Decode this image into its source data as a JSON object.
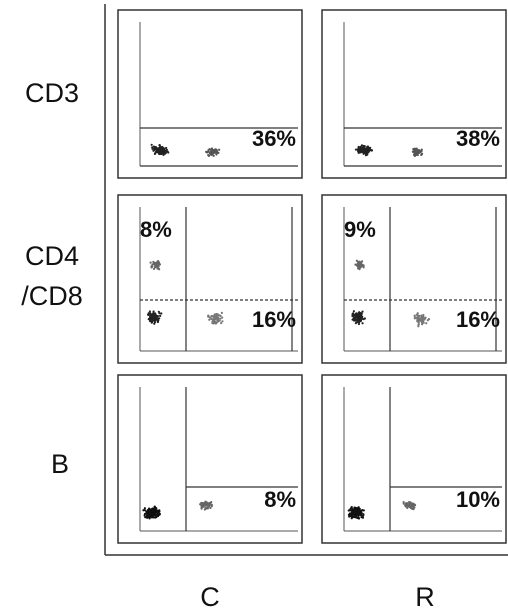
{
  "row_labels": [
    [
      "CD3"
    ],
    [
      "CD4",
      "/CD8"
    ],
    [
      "B"
    ]
  ],
  "column_labels": [
    "C",
    "R"
  ],
  "panels": [
    [
      {
        "labels": [
          "36%"
        ]
      },
      {
        "labels": [
          "38%"
        ]
      }
    ],
    [
      {
        "labels": [
          "8%",
          "16%"
        ]
      },
      {
        "labels": [
          "9%",
          "16%"
        ]
      }
    ],
    [
      {
        "labels": [
          "8%"
        ]
      },
      {
        "labels": [
          "10%"
        ]
      }
    ]
  ]
}
